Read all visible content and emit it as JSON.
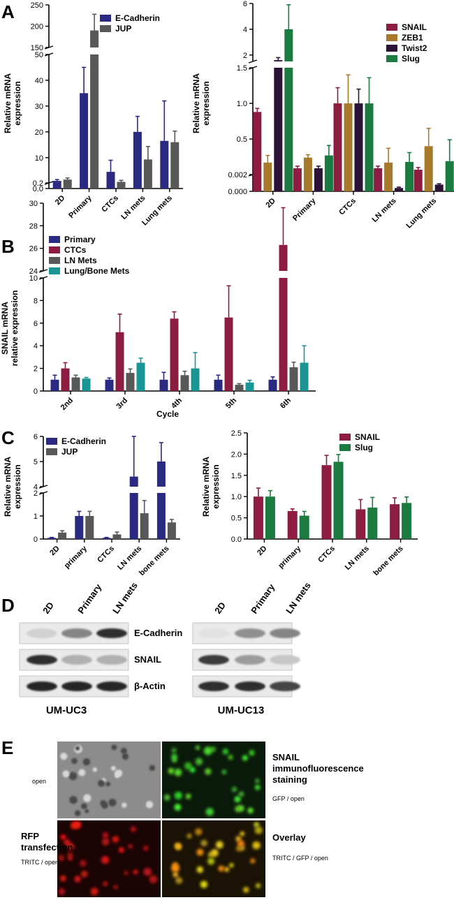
{
  "panel_labels": {
    "a": "A",
    "b": "B",
    "c": "C",
    "d": "D",
    "e": "E"
  },
  "colors": {
    "blue": "#2b2a82",
    "gray": "#585858",
    "crimson": "#8c1d40",
    "ochre": "#a77a2b",
    "plum": "#2c1236",
    "green": "#1b7a3f",
    "teal": "#1a9595"
  },
  "chart_data": [
    {
      "id": "A1",
      "type": "bar",
      "ylabel": "Relative mRNA\nexpression",
      "categories": [
        "2D",
        "Primary",
        "CTCs",
        "LN mets",
        "Lung mets"
      ],
      "series": [
        {
          "name": "E-Cadherin",
          "values": [
            1,
            35,
            4.5,
            20,
            16.5
          ],
          "errors": [
            0.5,
            10,
            4.5,
            6,
            15.5
          ]
        },
        {
          "name": "JUP",
          "values": [
            1.5,
            190,
            0.6,
            9.3,
            16
          ],
          "errors": [
            0.6,
            38,
            0.6,
            5,
            4.3
          ]
        }
      ],
      "broken_axis": true,
      "ylim_segments": [
        [
          0,
          0.2
        ],
        [
          0.2,
          50
        ],
        [
          150,
          250
        ]
      ],
      "yticks_segments": [
        [
          "0.0",
          "0.2"
        ],
        [
          "10",
          "20",
          "30",
          "40",
          "50"
        ],
        [
          "150",
          "200",
          "250"
        ]
      ],
      "legend_position": "top-right"
    },
    {
      "id": "A2",
      "type": "bar",
      "ylabel": "Relative mRNA\nexpression",
      "categories": [
        "2D",
        "Primary",
        "CTCs",
        "LN mets",
        "Lung mets"
      ],
      "series": [
        {
          "name": "SNAIL",
          "values": [
            0.88,
            0.09,
            1.0,
            0.09,
            0.07
          ],
          "errors": [
            0.05,
            0.03,
            0.22,
            0.03,
            0.03
          ]
        },
        {
          "name": "ZEB1",
          "values": [
            0.17,
            0.24,
            1.0,
            0.17,
            0.4
          ],
          "errors": [
            0.1,
            0.04,
            0.4,
            0.2,
            0.25
          ]
        },
        {
          "name": "Twist2",
          "values": [
            1.6,
            0.09,
            1.0,
            0.0004,
            0.0008
          ],
          "errors": [
            0.2,
            0.03,
            0.2,
            0.0001,
            0.0001
          ]
        },
        {
          "name": "Slug",
          "values": [
            4.0,
            0.27,
            1.0,
            0.18,
            0.19
          ],
          "errors": [
            1.9,
            0.14,
            0.36,
            0.13,
            0.3
          ]
        }
      ],
      "broken_axis": true,
      "ylim_segments": [
        [
          0,
          0.002
        ],
        [
          0.002,
          1.5
        ],
        [
          1.5,
          6
        ]
      ],
      "yticks_segments": [
        [
          "0.000",
          "0.002"
        ],
        [
          "0.5",
          "1.0",
          "1.5"
        ],
        [
          "2",
          "4",
          "6"
        ]
      ],
      "legend_position": "top-right"
    },
    {
      "id": "B",
      "type": "bar",
      "ylabel": "SNAIL mRNA\nrelative expression",
      "xlabel": "Cycle",
      "categories": [
        "2nd",
        "3rd",
        "4th",
        "5th",
        "6th"
      ],
      "series": [
        {
          "name": "Primary",
          "values": [
            1.0,
            1.0,
            1.0,
            1.0,
            1.0
          ],
          "errors": [
            0.4,
            0.15,
            0.65,
            0.4,
            0.25
          ]
        },
        {
          "name": "CTCs",
          "values": [
            2.0,
            5.2,
            6.4,
            6.5,
            26.3
          ],
          "errors": [
            0.5,
            1.6,
            0.6,
            2.8,
            3.3
          ]
        },
        {
          "name": "LN Mets",
          "values": [
            1.2,
            1.6,
            1.4,
            0.55,
            2.1
          ],
          "errors": [
            0.2,
            0.35,
            0.35,
            0.1,
            0.45
          ]
        },
        {
          "name": "Lung/Bone Mets",
          "values": [
            1.1,
            2.5,
            2.0,
            0.75,
            2.5
          ],
          "errors": [
            0.1,
            0.4,
            1.4,
            0.2,
            1.5
          ]
        }
      ],
      "broken_axis": true,
      "ylim_segments": [
        [
          0,
          10
        ],
        [
          24,
          30
        ]
      ],
      "yticks_segments": [
        [
          "0",
          "2",
          "4",
          "6",
          "8",
          "10"
        ],
        [
          "24",
          "26",
          "28",
          "30"
        ]
      ],
      "legend_position": "top-left"
    },
    {
      "id": "C1",
      "type": "bar",
      "ylabel": "Relative mRNA\nexpression",
      "categories": [
        "2D",
        "primary",
        "CTCs",
        "LN mets",
        "bone mets"
      ],
      "series": [
        {
          "name": "E-Cadherin",
          "values": [
            0.05,
            1.0,
            0.05,
            4.4,
            5.0
          ],
          "errors": [
            0.02,
            0.2,
            0.02,
            1.6,
            0.75
          ]
        },
        {
          "name": "JUP",
          "values": [
            0.28,
            1.0,
            0.2,
            1.12,
            0.72
          ],
          "errors": [
            0.08,
            0.2,
            0.1,
            0.55,
            0.13
          ]
        }
      ],
      "broken_axis": true,
      "ylim_segments": [
        [
          0,
          2
        ],
        [
          4,
          6
        ]
      ],
      "yticks_segments": [
        [
          "0",
          "1",
          "2"
        ],
        [
          "4",
          "5",
          "6"
        ]
      ],
      "legend_position": "top-left"
    },
    {
      "id": "C2",
      "type": "bar",
      "ylabel": "Relative mRNA\nexpression",
      "categories": [
        "2D",
        "primary",
        "CTCs",
        "LN mets",
        "bone mets"
      ],
      "series": [
        {
          "name": "SNAIL",
          "values": [
            1.0,
            0.66,
            1.74,
            0.7,
            0.82
          ],
          "errors": [
            0.2,
            0.05,
            0.23,
            0.23,
            0.15
          ]
        },
        {
          "name": "Slug",
          "values": [
            1.0,
            0.55,
            1.82,
            0.74,
            0.85
          ],
          "errors": [
            0.14,
            0.1,
            0.17,
            0.24,
            0.14
          ]
        }
      ],
      "broken_axis": false,
      "ylim": [
        0,
        2.5
      ],
      "yticks": [
        "0.0",
        "0.5",
        "1.0",
        "1.5",
        "2.0",
        "2.5"
      ],
      "legend_position": "top-right"
    }
  ],
  "western_blot": {
    "lanes": [
      "2D",
      "Primary",
      "LN mets"
    ],
    "bands": [
      "E-Cadherin",
      "SNAIL",
      "β-Actin"
    ],
    "cell_lines": [
      "UM-UC3",
      "UM-UC13"
    ],
    "intensity": {
      "UM-UC3": [
        [
          0.1,
          0.45,
          0.85
        ],
        [
          0.85,
          0.25,
          0.25
        ],
        [
          0.9,
          0.9,
          0.9
        ]
      ],
      "UM-UC13": [
        [
          0.02,
          0.4,
          0.45
        ],
        [
          0.8,
          0.35,
          0.15
        ],
        [
          0.85,
          0.85,
          0.75
        ]
      ]
    }
  },
  "microscopy": {
    "tiles": [
      {
        "id": "open",
        "caption": "open",
        "kind": "dic"
      },
      {
        "id": "green",
        "title": "SNAIL\nimmunofluorescence\nstaining",
        "caption": "GFP  / open",
        "kind": "green"
      },
      {
        "id": "red",
        "title": "RFP\ntransfection",
        "caption": "TRITC  / open",
        "kind": "red"
      },
      {
        "id": "overlay",
        "title": "Overlay",
        "caption": "TRITC / GFP  / open",
        "kind": "overlay"
      }
    ]
  }
}
